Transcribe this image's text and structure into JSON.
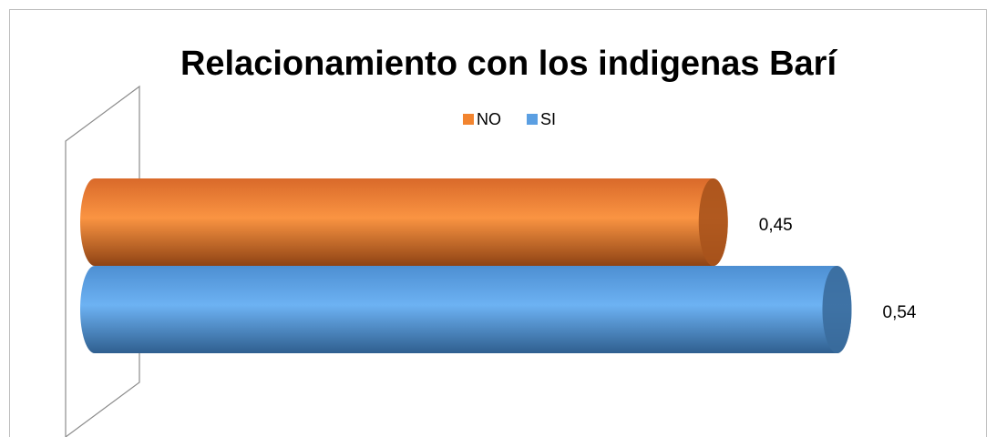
{
  "chart_data": {
    "type": "bar",
    "orientation": "horizontal",
    "title": "Relacionamiento con los indigenas Barí",
    "categories": [
      null
    ],
    "series": [
      {
        "name": "NO",
        "color": "#f2842f",
        "values": [
          0.45
        ],
        "value_labels": [
          "0,45"
        ]
      },
      {
        "name": "SI",
        "color": "#5b9fe2",
        "values": [
          0.54
        ],
        "value_labels": [
          "0,54"
        ]
      }
    ],
    "xlim": [
      0,
      0.6
    ],
    "legend": "top"
  }
}
